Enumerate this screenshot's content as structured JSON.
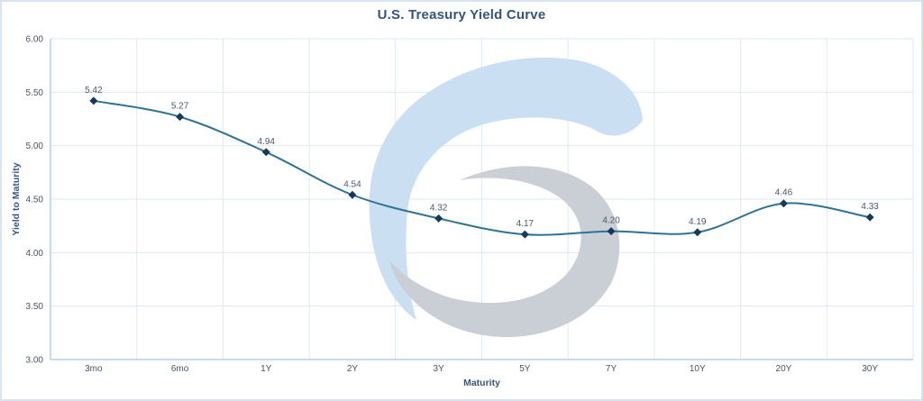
{
  "chart_data": {
    "type": "line",
    "title": "U.S. Treasury Yield Curve",
    "xlabel": "Maturity",
    "ylabel": "Yield to Maturity",
    "categories": [
      "3mo",
      "6mo",
      "1Y",
      "2Y",
      "3Y",
      "5Y",
      "7Y",
      "10Y",
      "20Y",
      "30Y"
    ],
    "values": [
      5.42,
      5.27,
      4.94,
      4.54,
      4.32,
      4.17,
      4.2,
      4.19,
      4.46,
      4.33
    ],
    "data_labels": [
      "5.42",
      "5.27",
      "4.94",
      "4.54",
      "4.32",
      "4.17",
      "4.20",
      "4.19",
      "4.46",
      "4.33"
    ],
    "ylim": [
      3.0,
      6.0
    ],
    "ytick_labels": [
      "6.00",
      "5.50",
      "5.00",
      "4.50",
      "4.00",
      "3.50",
      "3.00"
    ],
    "grid": true,
    "legend": false,
    "marker": "diamond",
    "smooth": true
  },
  "colors": {
    "background": "#ffffff",
    "frame_border": "#d7e4f3",
    "title_text": "#33567d",
    "tick_text": "#44546a",
    "data_label_text": "#4a5a68",
    "h_gridline": "#dbe8f5",
    "v_gridline": "#dde9f6",
    "axis_line": "#b3cfe9",
    "series_line": "#2e7296",
    "marker_fill": "#16395a",
    "watermark_outer": "#cbdff2",
    "watermark_inner": "#c9cfd5"
  },
  "watermark": {
    "name": "brand-swirl-logo-watermark"
  }
}
